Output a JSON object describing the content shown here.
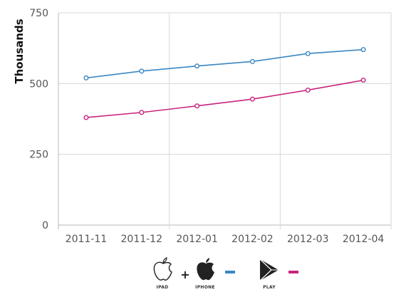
{
  "chart_data": {
    "type": "line",
    "ylabel": "Thousands",
    "categories": [
      "2011-11",
      "2011-12",
      "2012-01",
      "2012-02",
      "2012-03",
      "2012-04"
    ],
    "ylim": [
      0,
      750
    ],
    "yticks": [
      0,
      250,
      500,
      750
    ],
    "grid": true,
    "series": [
      {
        "color": "#3a87c2",
        "values": [
          520,
          544,
          562,
          578,
          606,
          620
        ]
      },
      {
        "color": "#c8247e",
        "values": [
          380,
          398,
          421,
          445,
          477,
          512
        ]
      }
    ],
    "legend": {
      "placement": "bottom-center",
      "items": [
        {
          "icon": "apple-logo-outline-icon",
          "caption": "IPAD"
        },
        {
          "icon": "plus-icon",
          "caption": "+"
        },
        {
          "icon": "apple-logo-solid-icon",
          "caption": "IPHONE"
        },
        {
          "icon": "play-logo-icon",
          "caption": "PLAY"
        }
      ],
      "ios_color": "#3a87c2",
      "play_color": "#c8247e"
    }
  }
}
